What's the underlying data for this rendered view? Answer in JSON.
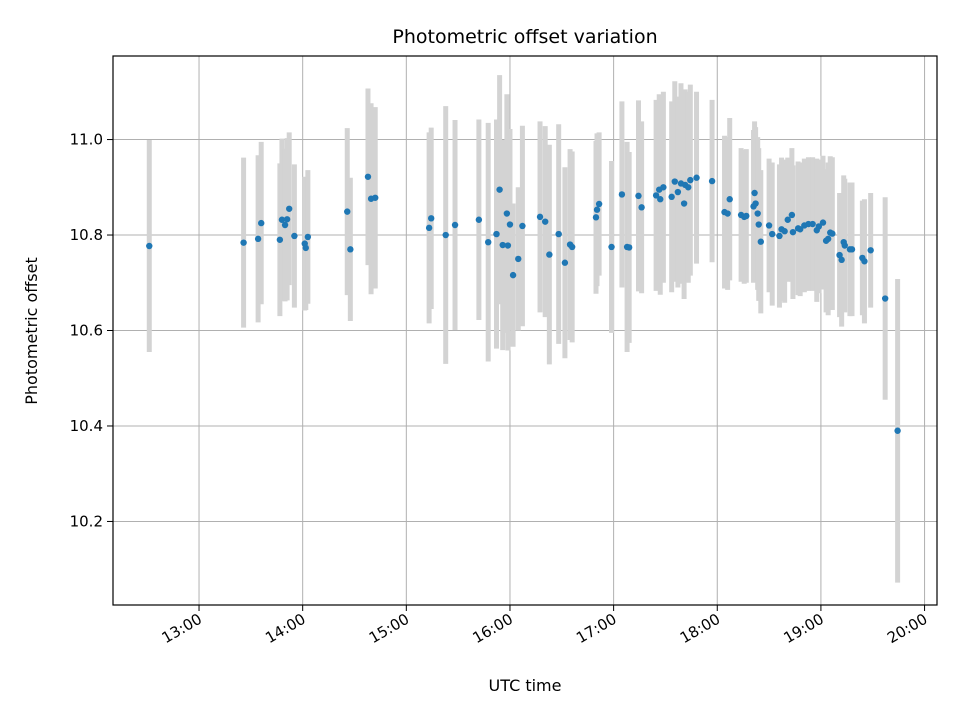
{
  "chart_data": {
    "type": "scatter",
    "title": "Photometric offset variation",
    "xlabel": "UTC time",
    "ylabel": "Photometric offset",
    "x_unit": "hours UTC",
    "xlim": [
      12.17,
      20.12
    ],
    "ylim": [
      10.025,
      11.175
    ],
    "grid": true,
    "x_ticks": [
      {
        "value": 13,
        "label": "13:00"
      },
      {
        "value": 14,
        "label": "14:00"
      },
      {
        "value": 15,
        "label": "15:00"
      },
      {
        "value": 16,
        "label": "16:00"
      },
      {
        "value": 17,
        "label": "17:00"
      },
      {
        "value": 18,
        "label": "18:00"
      },
      {
        "value": 19,
        "label": "19:00"
      },
      {
        "value": 20,
        "label": "20:00"
      }
    ],
    "y_ticks": [
      {
        "value": 10.2,
        "label": "10.2"
      },
      {
        "value": 10.4,
        "label": "10.4"
      },
      {
        "value": 10.6,
        "label": "10.6"
      },
      {
        "value": 10.8,
        "label": "10.8"
      },
      {
        "value": 11.0,
        "label": "11.0"
      }
    ],
    "point_color": "#1f77b4",
    "errorbar_color": "#d3d3d3",
    "points": [
      [
        12.52,
        10.777,
        0.222
      ],
      [
        13.43,
        10.784,
        0.178
      ],
      [
        13.57,
        10.792,
        0.175
      ],
      [
        13.6,
        10.825,
        0.17
      ],
      [
        13.78,
        10.79,
        0.16
      ],
      [
        13.8,
        10.832,
        0.17
      ],
      [
        13.83,
        10.821,
        0.16
      ],
      [
        13.85,
        10.833,
        0.17
      ],
      [
        13.87,
        10.855,
        0.16
      ],
      [
        13.92,
        10.798,
        0.15
      ],
      [
        14.02,
        10.782,
        0.14
      ],
      [
        14.03,
        10.773,
        0.13
      ],
      [
        14.05,
        10.796,
        0.14
      ],
      [
        14.43,
        10.849,
        0.175
      ],
      [
        14.46,
        10.77,
        0.15
      ],
      [
        14.63,
        10.922,
        0.185
      ],
      [
        14.66,
        10.876,
        0.2
      ],
      [
        14.7,
        10.878,
        0.19
      ],
      [
        15.22,
        10.815,
        0.2
      ],
      [
        15.24,
        10.835,
        0.19
      ],
      [
        15.38,
        10.8,
        0.27
      ],
      [
        15.47,
        10.821,
        0.22
      ],
      [
        15.7,
        10.832,
        0.21
      ],
      [
        15.79,
        10.785,
        0.25
      ],
      [
        15.87,
        10.802,
        0.24
      ],
      [
        15.9,
        10.895,
        0.24
      ],
      [
        15.93,
        10.779,
        0.22
      ],
      [
        15.97,
        10.845,
        0.25
      ],
      [
        15.98,
        10.778,
        0.22
      ],
      [
        16.0,
        10.822,
        0.2
      ],
      [
        16.03,
        10.716,
        0.15
      ],
      [
        16.08,
        10.75,
        0.15
      ],
      [
        16.12,
        10.819,
        0.21
      ],
      [
        16.29,
        10.838,
        0.2
      ],
      [
        16.34,
        10.828,
        0.2
      ],
      [
        16.38,
        10.759,
        0.23
      ],
      [
        16.47,
        10.802,
        0.23
      ],
      [
        16.53,
        10.742,
        0.2
      ],
      [
        16.58,
        10.78,
        0.2
      ],
      [
        16.6,
        10.775,
        0.2
      ],
      [
        16.83,
        10.837,
        0.16
      ],
      [
        16.84,
        10.853,
        0.16
      ],
      [
        16.86,
        10.865,
        0.15
      ],
      [
        16.98,
        10.775,
        0.18
      ],
      [
        17.08,
        10.885,
        0.195
      ],
      [
        17.13,
        10.775,
        0.22
      ],
      [
        17.15,
        10.774,
        0.2
      ],
      [
        17.24,
        10.882,
        0.2
      ],
      [
        17.27,
        10.858,
        0.18
      ],
      [
        17.41,
        10.883,
        0.2
      ],
      [
        17.44,
        10.895,
        0.2
      ],
      [
        17.45,
        10.875,
        0.2
      ],
      [
        17.48,
        10.9,
        0.2
      ],
      [
        17.56,
        10.88,
        0.2
      ],
      [
        17.59,
        10.912,
        0.21
      ],
      [
        17.62,
        10.89,
        0.2
      ],
      [
        17.65,
        10.908,
        0.21
      ],
      [
        17.68,
        10.866,
        0.2
      ],
      [
        17.69,
        10.905,
        0.2
      ],
      [
        17.72,
        10.9,
        0.2
      ],
      [
        17.74,
        10.915,
        0.2
      ],
      [
        17.8,
        10.92,
        0.18
      ],
      [
        17.95,
        10.913,
        0.17
      ],
      [
        18.07,
        10.848,
        0.16
      ],
      [
        18.1,
        10.845,
        0.16
      ],
      [
        18.12,
        10.875,
        0.17
      ],
      [
        18.23,
        10.842,
        0.14
      ],
      [
        18.26,
        10.838,
        0.14
      ],
      [
        18.28,
        10.84,
        0.14
      ],
      [
        18.35,
        10.86,
        0.16
      ],
      [
        18.36,
        10.888,
        0.15
      ],
      [
        18.37,
        10.866,
        0.16
      ],
      [
        18.39,
        10.845,
        0.16
      ],
      [
        18.4,
        10.822,
        0.16
      ],
      [
        18.42,
        10.786,
        0.15
      ],
      [
        18.5,
        10.82,
        0.14
      ],
      [
        18.53,
        10.802,
        0.15
      ],
      [
        18.6,
        10.798,
        0.15
      ],
      [
        18.62,
        10.812,
        0.15
      ],
      [
        18.65,
        10.808,
        0.15
      ],
      [
        18.68,
        10.832,
        0.13
      ],
      [
        18.72,
        10.842,
        0.14
      ],
      [
        18.73,
        10.806,
        0.14
      ],
      [
        18.78,
        10.814,
        0.14
      ],
      [
        18.8,
        10.812,
        0.14
      ],
      [
        18.84,
        10.82,
        0.14
      ],
      [
        18.88,
        10.823,
        0.14
      ],
      [
        18.92,
        10.823,
        0.14
      ],
      [
        18.96,
        10.81,
        0.15
      ],
      [
        18.98,
        10.818,
        0.14
      ],
      [
        19.02,
        10.826,
        0.14
      ],
      [
        19.05,
        10.788,
        0.15
      ],
      [
        19.07,
        10.792,
        0.16
      ],
      [
        19.09,
        10.805,
        0.16
      ],
      [
        19.11,
        10.803,
        0.16
      ],
      [
        19.18,
        10.758,
        0.13
      ],
      [
        19.2,
        10.748,
        0.14
      ],
      [
        19.22,
        10.785,
        0.14
      ],
      [
        19.23,
        10.778,
        0.14
      ],
      [
        19.28,
        10.77,
        0.14
      ],
      [
        19.3,
        10.77,
        0.14
      ],
      [
        19.4,
        10.752,
        0.12
      ],
      [
        19.42,
        10.745,
        0.13
      ],
      [
        19.48,
        10.768,
        0.12
      ],
      [
        19.62,
        10.667,
        0.212
      ],
      [
        19.74,
        10.39,
        0.318
      ]
    ]
  }
}
